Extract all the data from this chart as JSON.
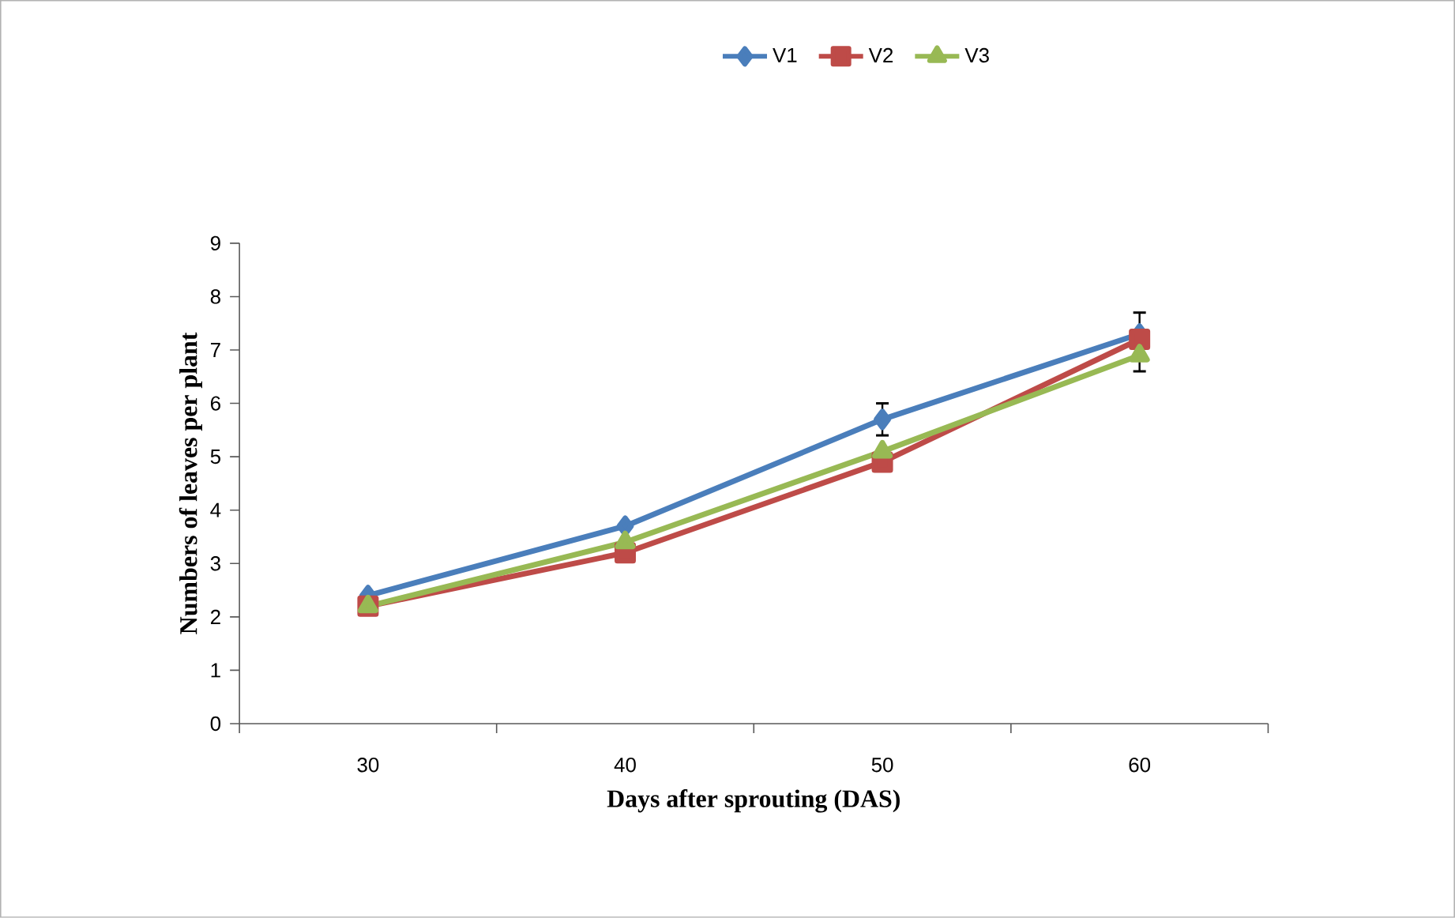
{
  "chart_data": {
    "type": "line",
    "xlabel": "Days after sprouting  (DAS)",
    "ylabel": "Numbers of leaves per plant",
    "categories": [
      "30",
      "40",
      "50",
      "60"
    ],
    "series": [
      {
        "name": "V1",
        "color": "#4a7ebb",
        "marker": "diamond",
        "values": [
          2.4,
          3.7,
          5.7,
          7.3
        ],
        "errors": [
          null,
          null,
          0.3,
          0.4
        ]
      },
      {
        "name": "V2",
        "color": "#be4b48",
        "marker": "square",
        "values": [
          2.2,
          3.2,
          4.9,
          7.2
        ]
      },
      {
        "name": "V3",
        "color": "#98b954",
        "marker": "triangle",
        "values": [
          2.2,
          3.4,
          5.1,
          6.9
        ],
        "errors": [
          null,
          null,
          null,
          0.3
        ]
      }
    ],
    "ylim": [
      0,
      9
    ],
    "yticks": [
      0,
      1,
      2,
      3,
      4,
      5,
      6,
      7,
      8,
      9
    ],
    "grid": false,
    "legend": "top"
  }
}
